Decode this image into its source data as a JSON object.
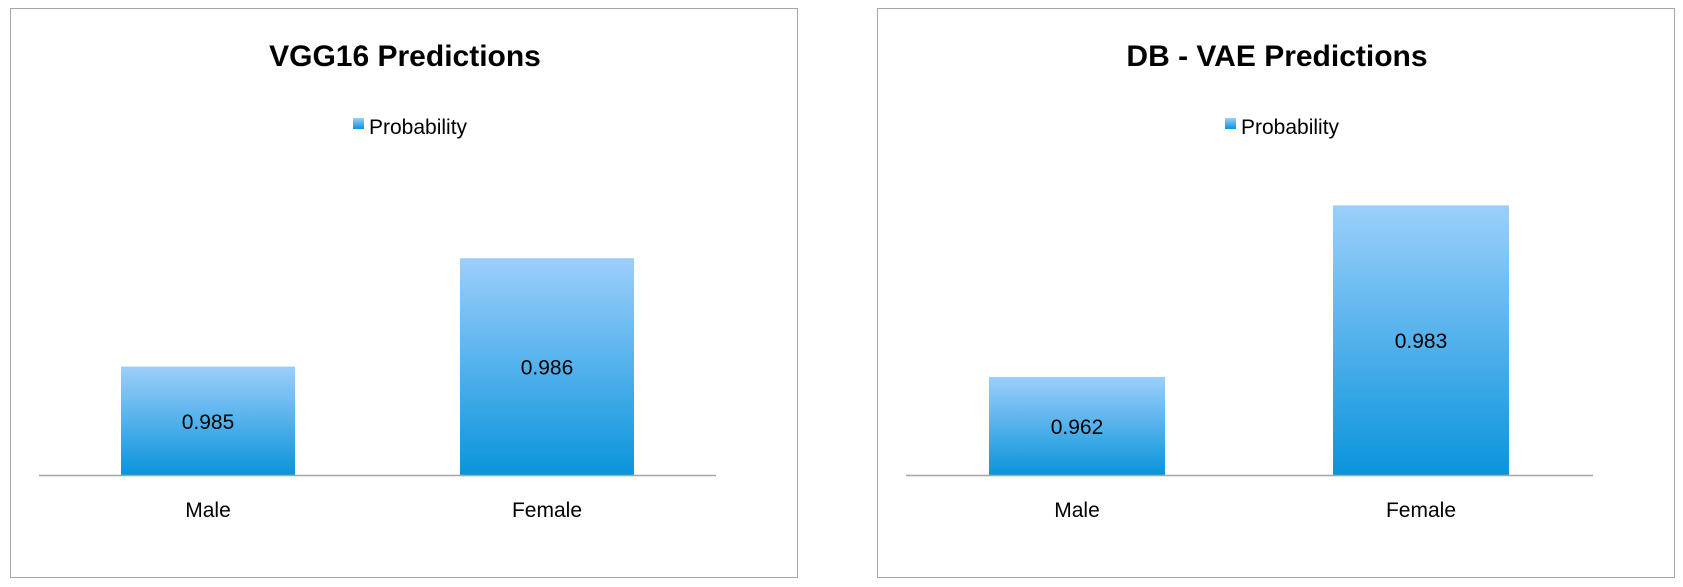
{
  "chart_data": [
    {
      "type": "bar",
      "title": "VGG16 Predictions",
      "categories": [
        "Male",
        "Female"
      ],
      "series": [
        {
          "name": "Probability",
          "values": [
            0.985,
            0.986
          ]
        }
      ],
      "data_labels": [
        "0.985",
        "0.986"
      ],
      "ylim": [
        0.984,
        0.9865
      ],
      "legend_position": "top",
      "grid": false,
      "bar_color_top": "#9ccffb",
      "bar_color_bottom": "#0a94dc"
    },
    {
      "type": "bar",
      "title": "DB - VAE Predictions",
      "categories": [
        "Male",
        "Female"
      ],
      "series": [
        {
          "name": "Probability",
          "values": [
            0.962,
            0.983
          ]
        }
      ],
      "data_labels": [
        "0.962",
        "0.983"
      ],
      "ylim": [
        0.95,
        0.985
      ],
      "legend_position": "top",
      "grid": false,
      "bar_color_top": "#9ccffb",
      "bar_color_bottom": "#0a94dc"
    }
  ],
  "colors": {
    "axis": "#a6a6a6",
    "border": "#a6a6a6"
  }
}
